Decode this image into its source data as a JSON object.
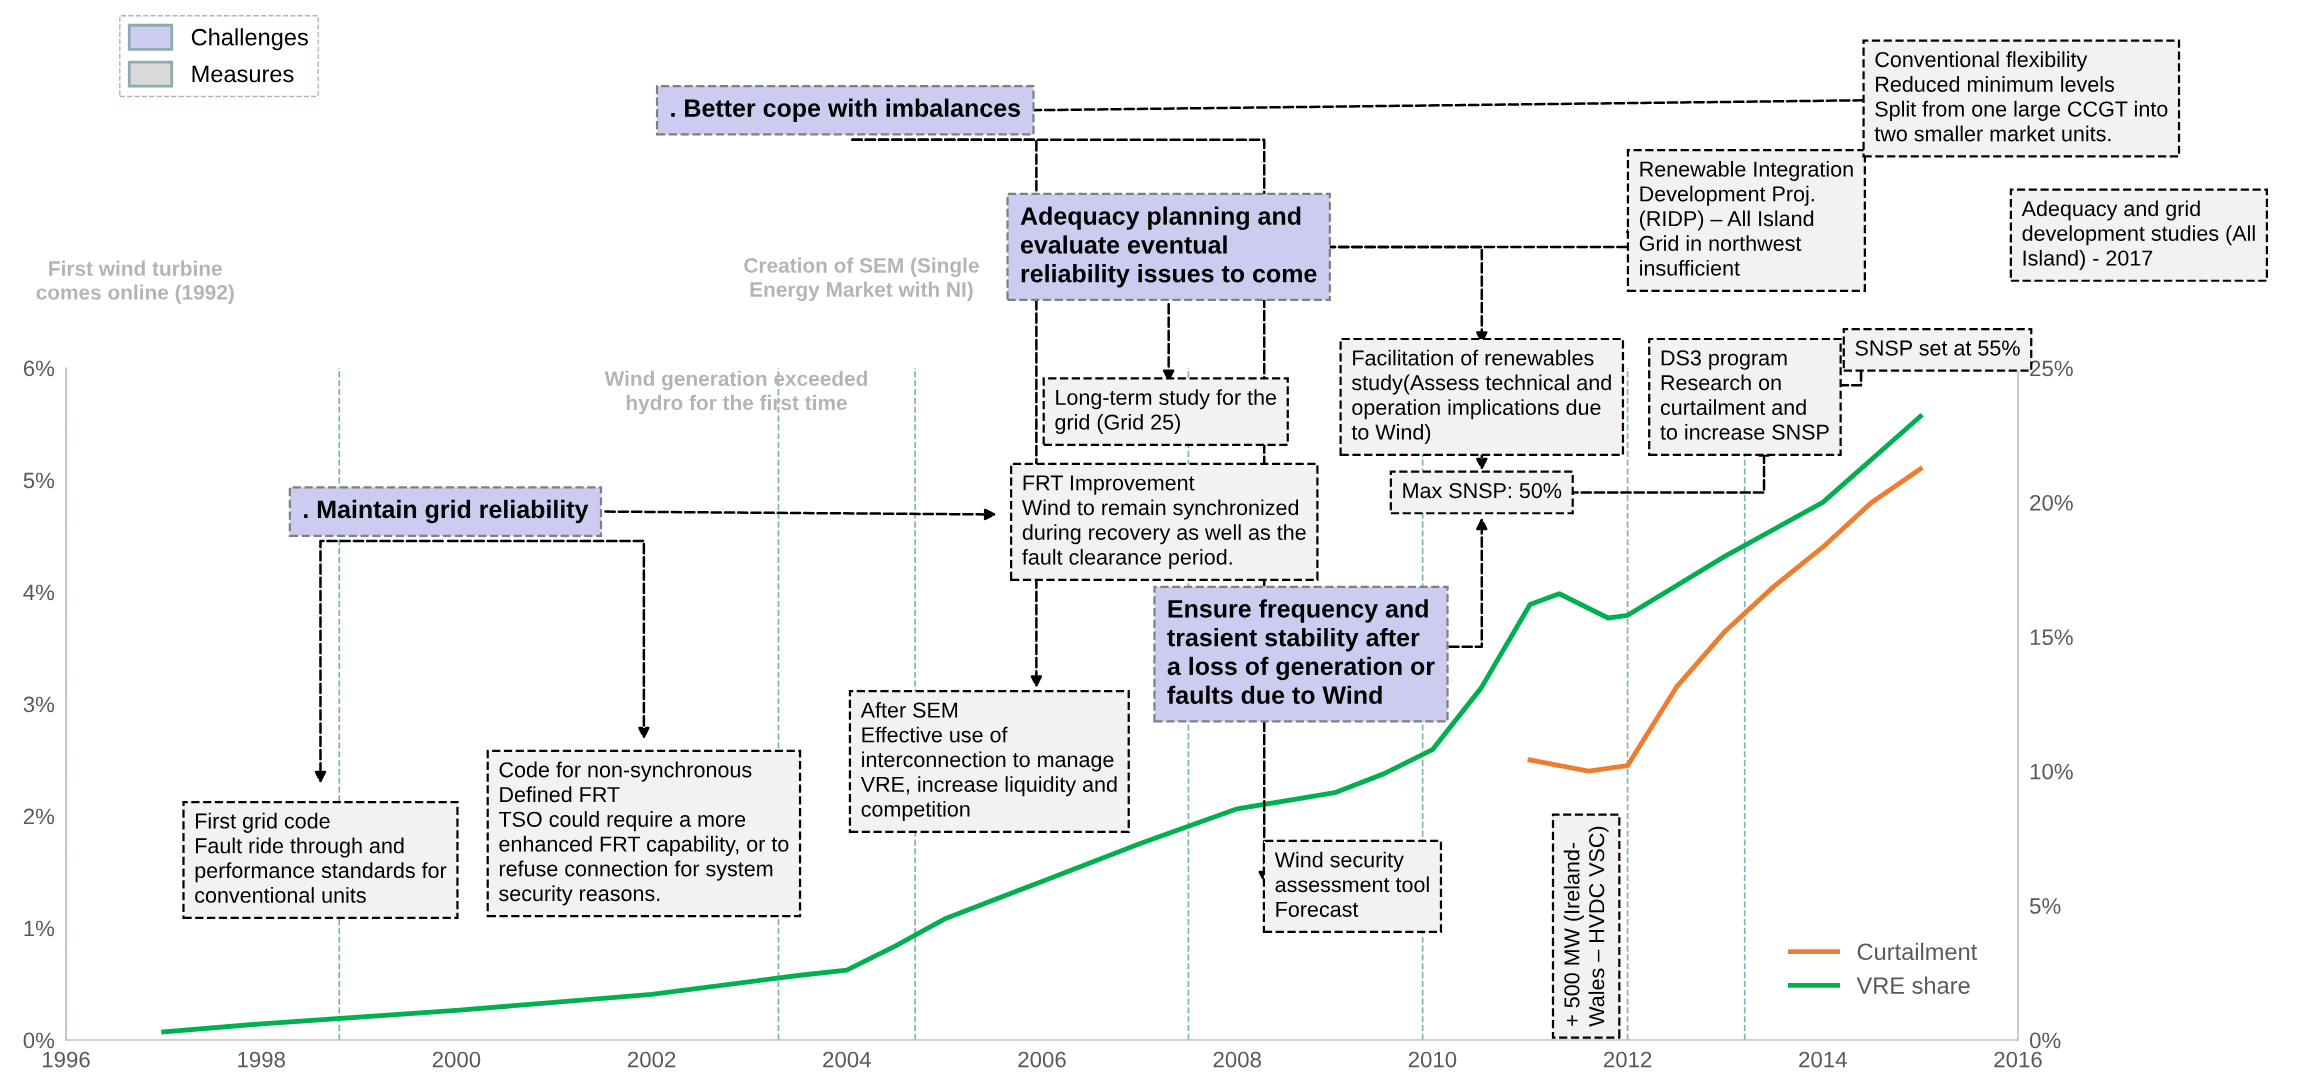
{
  "chart_data": {
    "type": "line",
    "xlim": [
      1996,
      2016
    ],
    "xticks": [
      1996,
      1998,
      2000,
      2002,
      2004,
      2006,
      2008,
      2010,
      2012,
      2014,
      2016
    ],
    "ylim": [
      0,
      6
    ],
    "yticks": [
      {
        "value": 0,
        "label": "0%"
      },
      {
        "value": 1,
        "label": "1%"
      },
      {
        "value": 2,
        "label": "2%"
      },
      {
        "value": 3,
        "label": "3%"
      },
      {
        "value": 4,
        "label": "4%"
      },
      {
        "value": 5,
        "label": "5%"
      },
      {
        "value": 6,
        "label": "6%"
      }
    ],
    "y2lim": [
      0,
      25
    ],
    "y2ticks": [
      {
        "value": 0,
        "label": "0%"
      },
      {
        "value": 5,
        "label": "5%"
      },
      {
        "value": 10,
        "label": "10%"
      },
      {
        "value": 15,
        "label": "15%"
      },
      {
        "value": 20,
        "label": "20%"
      },
      {
        "value": 25,
        "label": "25%"
      }
    ],
    "series": [
      {
        "name": "Curtailment",
        "color": "#ed7d31",
        "x": [
          2011,
          2011.6,
          2012,
          2012.5,
          2013,
          2013.5,
          2014,
          2014.5,
          2015
        ],
        "values": [
          2.5,
          2.4,
          2.45,
          3.15,
          3.65,
          4.05,
          4.4,
          4.8,
          5.1
        ]
      },
      {
        "name": "VRE share",
        "color": "#00b050",
        "axis": "y2",
        "x": [
          1997,
          1998,
          2000,
          2002,
          2003.5,
          2004,
          2004.5,
          2005,
          2006,
          2007,
          2008,
          2009,
          2009.5,
          2010,
          2010.5,
          2011,
          2011.3,
          2011.8,
          2012,
          2013,
          2014,
          2015
        ],
        "values": [
          0.3,
          0.6,
          1.1,
          1.7,
          2.4,
          2.6,
          3.5,
          4.5,
          5.9,
          7.3,
          8.6,
          9.2,
          9.9,
          10.8,
          13.1,
          16.2,
          16.6,
          15.7,
          15.8,
          18.0,
          20.0,
          23.2
        ]
      }
    ],
    "ref_lines": [
      {
        "axis": "x",
        "value": 1996.0,
        "color": "#7fb2b8",
        "line_style": "dashed"
      },
      {
        "axis": "x",
        "value": 1998.8,
        "color": "#7fb2b8",
        "line_style": "dashed"
      },
      {
        "axis": "x",
        "value": 2003.3,
        "color": "#7fb2b8",
        "line_style": "dashed"
      },
      {
        "axis": "x",
        "value": 2004.7,
        "color": "#7fb2b8",
        "line_style": "dashed"
      },
      {
        "axis": "x",
        "value": 2007.5,
        "color": "#7fb2b8",
        "line_style": "dashed"
      },
      {
        "axis": "x",
        "value": 2009.9,
        "color": "#7fb2b8",
        "line_style": "dashed"
      },
      {
        "axis": "x",
        "value": 2012.0,
        "color": "#7fb2b8",
        "line_style": "dashed"
      },
      {
        "axis": "x",
        "value": 2013.2,
        "color": "#7fb2b8",
        "line_style": "dashed"
      }
    ],
    "annotations": [
      "Challenges",
      "Measures",
      "First wind turbine\ncomes online (1992)",
      "Creation of SEM (Single\nEnergy Market with NI)",
      "Wind generation exceeded\nhydro for the first time",
      ". Better cope with imbalances",
      ". Maintain grid reliability",
      "Adequacy planning and\nevaluate eventual\nreliability issues to come",
      "Ensure frequency and\ntrasient stability after\na loss of generation or\nfaults due to Wind",
      "First grid code\nFault ride through and\nperformance standards for\nconventional units",
      "Code for non-synchronous\nDefined FRT\nTSO could require a more\nenhanced FRT capability, or to\nrefuse connection for system\nsecurity reasons.",
      "After SEM\nEffective use of\ninterconnection to manage\nVRE, increase liquidity and\ncompetition",
      "Long-term study for the\ngrid (Grid 25)",
      "FRT Improvement\nWind to remain synchronized\nduring recovery as well as the\nfault clearance period.",
      "Wind security\nassessment tool\nForecast",
      "Facilitation of renewables\nstudy(Assess technical and\noperation implications due\nto Wind)",
      "Max SNSP: 50%",
      "Renewable Integration\nDevelopment Proj.\n(RIDP) – All Island\nGrid in northwest\ninsufficient",
      "DS3 program\nResearch on\ncurtailment and\nto increase SNSP",
      "Conventional flexibility\nReduced minimum levels\nSplit from one large CCGT into\ntwo smaller market units.",
      "Adequacy and grid\ndevelopment studies (All\nIsland) - 2017",
      "SNSP set at 55%",
      "+ 500 MW (Ireland-\nWales – HVDC VSC)"
    ],
    "legend": "bottom right",
    "grid": false,
    "marker": "none",
    "line_style": "solid"
  }
}
